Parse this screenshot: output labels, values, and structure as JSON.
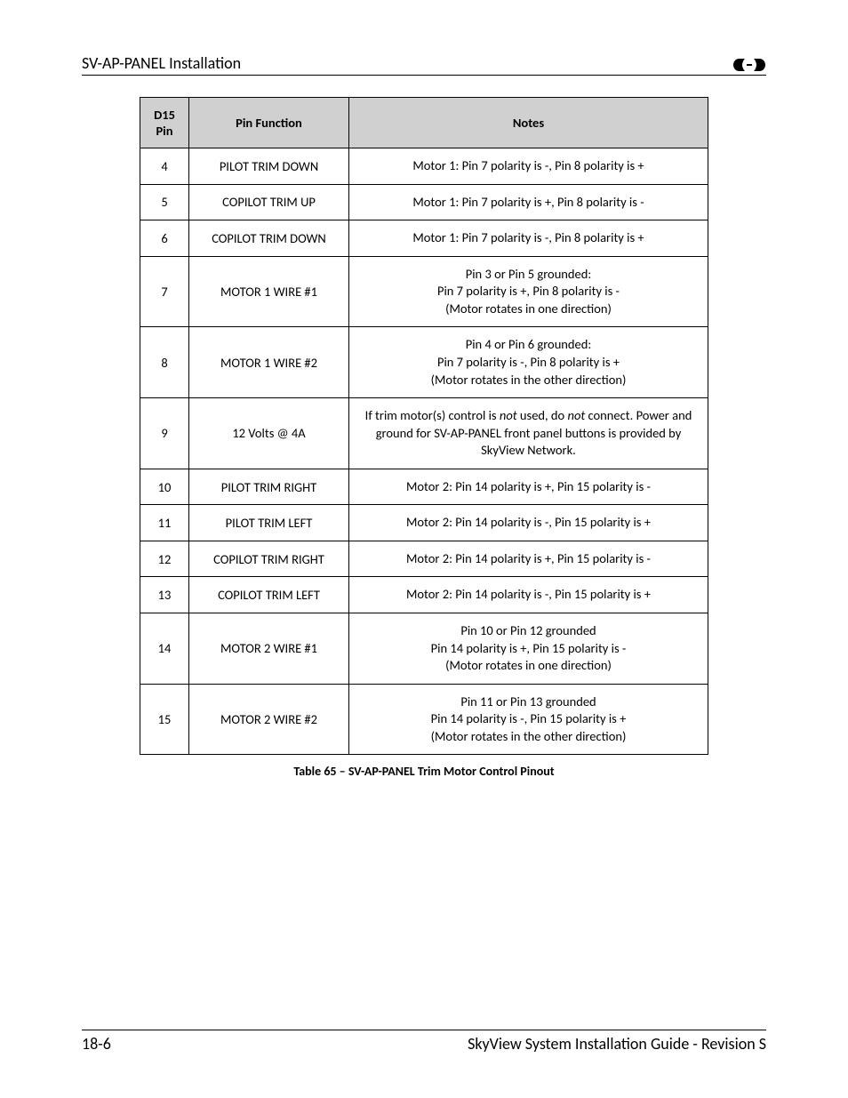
{
  "header": {
    "title": "SV-AP-PANEL Installation"
  },
  "table": {
    "columns": [
      "D15 Pin",
      "Pin Function",
      "Notes"
    ],
    "rows": [
      {
        "pin": "4",
        "func": "PILOT TRIM DOWN",
        "notes": [
          "Motor 1: Pin 7 polarity is -, Pin 8 polarity is +"
        ]
      },
      {
        "pin": "5",
        "func": "COPILOT TRIM UP",
        "notes": [
          "Motor 1: Pin 7 polarity is +, Pin 8 polarity is -"
        ]
      },
      {
        "pin": "6",
        "func": "COPILOT TRIM DOWN",
        "notes": [
          "Motor 1: Pin 7 polarity is -, Pin 8 polarity is +"
        ]
      },
      {
        "pin": "7",
        "func": "MOTOR 1 WIRE #1",
        "notes": [
          "Pin 3 or Pin 5 grounded:",
          "Pin 7 polarity is +, Pin 8 polarity is -",
          "(Motor rotates in one direction)"
        ]
      },
      {
        "pin": "8",
        "func": "MOTOR 1 WIRE #2",
        "notes": [
          "Pin 4 or Pin 6 grounded:",
          "Pin 7 polarity is -, Pin 8 polarity is +",
          "(Motor rotates in the other direction)"
        ]
      },
      {
        "pin": "9",
        "func": "12 Volts @ 4A",
        "notes_rich": [
          {
            "t": "If trim motor(s) control is "
          },
          {
            "t": "not",
            "i": true
          },
          {
            "t": " used, do "
          },
          {
            "t": "not",
            "i": true
          },
          {
            "t": " connect. Power and ground for SV-AP-PANEL front panel buttons is provided by SkyView Network."
          }
        ]
      },
      {
        "pin": "10",
        "func": "PILOT TRIM RIGHT",
        "notes": [
          "Motor 2: Pin 14 polarity is +, Pin 15 polarity is -"
        ]
      },
      {
        "pin": "11",
        "func": "PILOT TRIM LEFT",
        "notes": [
          "Motor 2: Pin 14 polarity is -, Pin 15 polarity is +"
        ]
      },
      {
        "pin": "12",
        "func": "COPILOT TRIM RIGHT",
        "notes": [
          "Motor 2: Pin 14 polarity is +, Pin 15 polarity is -"
        ]
      },
      {
        "pin": "13",
        "func": "COPILOT TRIM LEFT",
        "notes": [
          "Motor 2: Pin 14 polarity is -, Pin 15 polarity is +"
        ]
      },
      {
        "pin": "14",
        "func": "MOTOR 2 WIRE #1",
        "notes": [
          "Pin 10 or Pin 12 grounded",
          "Pin 14 polarity is +, Pin 15 polarity is -",
          "(Motor rotates in one direction)"
        ]
      },
      {
        "pin": "15",
        "func": "MOTOR 2 WIRE #2",
        "notes": [
          "Pin 11 or Pin 13 grounded",
          "Pin 14 polarity is -, Pin 15 polarity is +",
          "(Motor rotates in the other direction)"
        ]
      }
    ],
    "header_bg": "#d0d0d0",
    "border_color": "#000000",
    "font_size": 14.5
  },
  "caption": "Table 65 – SV-AP-PANEL Trim Motor Control Pinout",
  "footer": {
    "left": "18-6",
    "right": "SkyView System Installation Guide - Revision S"
  }
}
